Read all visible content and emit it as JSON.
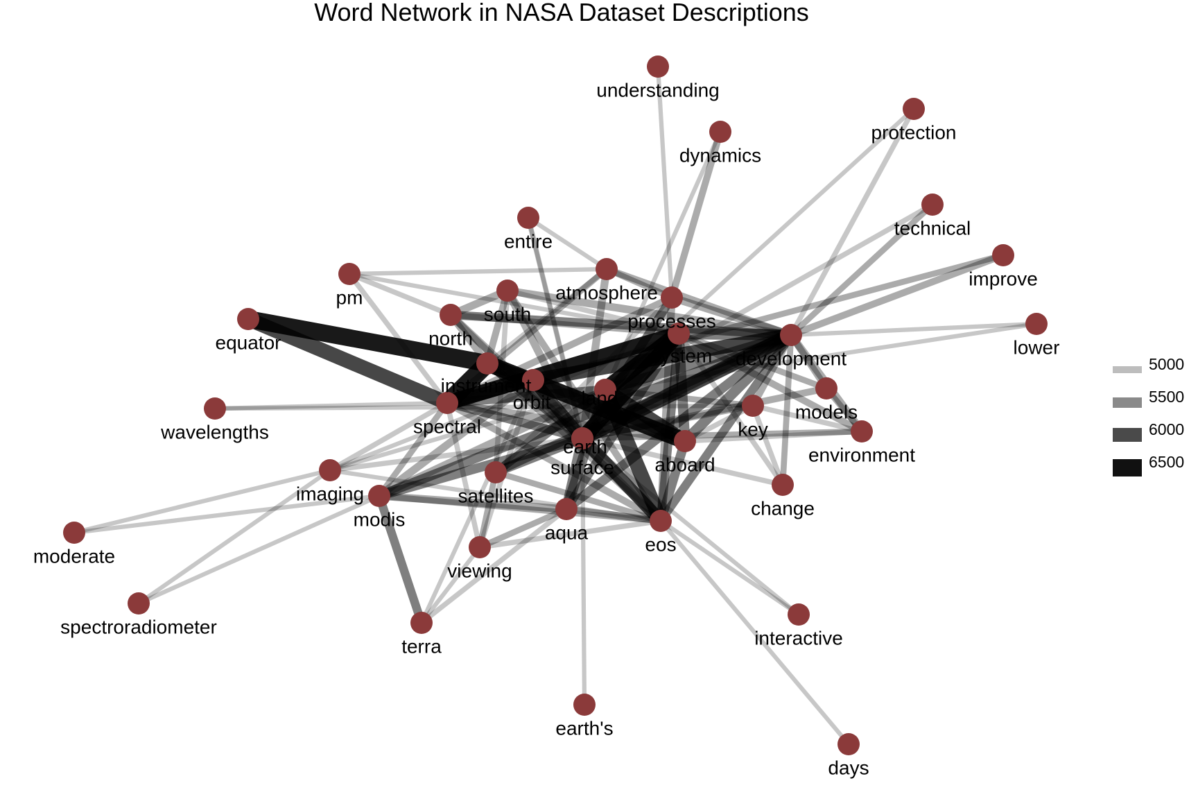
{
  "title": "Word Network in NASA Dataset Descriptions",
  "colors": {
    "node": "#8B3A3A",
    "edge": "#000000",
    "background": "#ffffff"
  },
  "legend": {
    "items": [
      {
        "label": "5000",
        "color": "#bdbdbd"
      },
      {
        "label": "5500",
        "color": "#8a8a8a"
      },
      {
        "label": "6000",
        "color": "#4a4a4a"
      },
      {
        "label": "6500",
        "color": "#111111"
      }
    ]
  },
  "network": {
    "nodes": [
      {
        "id": "understanding",
        "label": "understanding"
      },
      {
        "id": "dynamics",
        "label": "dynamics"
      },
      {
        "id": "protection",
        "label": "protection"
      },
      {
        "id": "technical",
        "label": "technical"
      },
      {
        "id": "entire",
        "label": "entire"
      },
      {
        "id": "improve",
        "label": "improve"
      },
      {
        "id": "atmosphere",
        "label": "atmosphere"
      },
      {
        "id": "pm",
        "label": "pm"
      },
      {
        "id": "south",
        "label": "south"
      },
      {
        "id": "processes",
        "label": "processes"
      },
      {
        "id": "lower",
        "label": "lower"
      },
      {
        "id": "north",
        "label": "north"
      },
      {
        "id": "equator",
        "label": "equator"
      },
      {
        "id": "system",
        "label": "system"
      },
      {
        "id": "development",
        "label": "development"
      },
      {
        "id": "instrument",
        "label": "instrument"
      },
      {
        "id": "orbit",
        "label": "orbit"
      },
      {
        "id": "land",
        "label": "land"
      },
      {
        "id": "models",
        "label": "models"
      },
      {
        "id": "key",
        "label": "key"
      },
      {
        "id": "spectral",
        "label": "spectral"
      },
      {
        "id": "wavelengths",
        "label": "wavelengths"
      },
      {
        "id": "environment",
        "label": "environment"
      },
      {
        "id": "earth",
        "label": "earth"
      },
      {
        "id": "aboard",
        "label": "aboard"
      },
      {
        "id": "surface",
        "label": "surface"
      },
      {
        "id": "imaging",
        "label": "imaging"
      },
      {
        "id": "satellites",
        "label": "satellites"
      },
      {
        "id": "change",
        "label": "change"
      },
      {
        "id": "modis",
        "label": "modis"
      },
      {
        "id": "aqua",
        "label": "aqua"
      },
      {
        "id": "eos",
        "label": "eos"
      },
      {
        "id": "moderate",
        "label": "moderate"
      },
      {
        "id": "viewing",
        "label": "viewing"
      },
      {
        "id": "spectroradiometer",
        "label": "spectroradiometer"
      },
      {
        "id": "terra",
        "label": "terra"
      },
      {
        "id": "interactive",
        "label": "interactive"
      },
      {
        "id": "earths",
        "label": "earth's"
      },
      {
        "id": "days",
        "label": "days"
      }
    ],
    "edges": [
      {
        "from": "equator",
        "to": "instrument",
        "n": 6600
      },
      {
        "from": "equator",
        "to": "spectral",
        "n": 6300
      },
      {
        "from": "instrument",
        "to": "spectral",
        "n": 6700
      },
      {
        "from": "instrument",
        "to": "aboard",
        "n": 6500
      },
      {
        "from": "spectral",
        "to": "system",
        "n": 6400
      },
      {
        "from": "land",
        "to": "system",
        "n": 6500
      },
      {
        "from": "earth",
        "to": "system",
        "n": 6400
      },
      {
        "from": "earth",
        "to": "development",
        "n": 6300
      },
      {
        "from": "orbit",
        "to": "development",
        "n": 6200
      },
      {
        "from": "land",
        "to": "eos",
        "n": 6300
      },
      {
        "from": "land",
        "to": "aboard",
        "n": 6200
      },
      {
        "from": "earth",
        "to": "eos",
        "n": 6100
      },
      {
        "from": "orbit",
        "to": "earth",
        "n": 6000
      },
      {
        "from": "orbit",
        "to": "spectral",
        "n": 6000
      },
      {
        "from": "instrument",
        "to": "orbit",
        "n": 6000
      },
      {
        "from": "system",
        "to": "development",
        "n": 5900
      },
      {
        "from": "system",
        "to": "aboard",
        "n": 5800
      },
      {
        "from": "system",
        "to": "eos",
        "n": 5600
      },
      {
        "from": "development",
        "to": "aboard",
        "n": 5800
      },
      {
        "from": "development",
        "to": "eos",
        "n": 5600
      },
      {
        "from": "development",
        "to": "environment",
        "n": 5500
      },
      {
        "from": "development",
        "to": "models",
        "n": 5400
      },
      {
        "from": "development",
        "to": "key",
        "n": 5400
      },
      {
        "from": "development",
        "to": "improve",
        "n": 5400
      },
      {
        "from": "development",
        "to": "technical",
        "n": 5300
      },
      {
        "from": "development",
        "to": "lower",
        "n": 5100
      },
      {
        "from": "development",
        "to": "protection",
        "n": 5200
      },
      {
        "from": "development",
        "to": "processes",
        "n": 5500
      },
      {
        "from": "development",
        "to": "atmosphere",
        "n": 5400
      },
      {
        "from": "development",
        "to": "south",
        "n": 5500
      },
      {
        "from": "development",
        "to": "north",
        "n": 5600
      },
      {
        "from": "development",
        "to": "surface",
        "n": 5700
      },
      {
        "from": "development",
        "to": "satellites",
        "n": 5600
      },
      {
        "from": "development",
        "to": "modis",
        "n": 5700
      },
      {
        "from": "development",
        "to": "aqua",
        "n": 5700
      },
      {
        "from": "development",
        "to": "change",
        "n": 5300
      },
      {
        "from": "models",
        "to": "environment",
        "n": 5300
      },
      {
        "from": "models",
        "to": "earth",
        "n": 5400
      },
      {
        "from": "key",
        "to": "environment",
        "n": 5200
      },
      {
        "from": "key",
        "to": "earth",
        "n": 5300
      },
      {
        "from": "key",
        "to": "change",
        "n": 5200
      },
      {
        "from": "environment",
        "to": "earth",
        "n": 5300
      },
      {
        "from": "environment",
        "to": "system",
        "n": 5400
      },
      {
        "from": "environment",
        "to": "aboard",
        "n": 5200
      },
      {
        "from": "understanding",
        "to": "processes",
        "n": 5100
      },
      {
        "from": "dynamics",
        "to": "processes",
        "n": 5400
      },
      {
        "from": "dynamics",
        "to": "land",
        "n": 5100
      },
      {
        "from": "protection",
        "to": "land",
        "n": 5100
      },
      {
        "from": "technical",
        "to": "land",
        "n": 5200
      },
      {
        "from": "improve",
        "to": "spectral",
        "n": 5300
      },
      {
        "from": "lower",
        "to": "land",
        "n": 5100
      },
      {
        "from": "entire",
        "to": "atmosphere",
        "n": 5100
      },
      {
        "from": "entire",
        "to": "surface",
        "n": 5200
      },
      {
        "from": "atmosphere",
        "to": "processes",
        "n": 5300
      },
      {
        "from": "atmosphere",
        "to": "earth",
        "n": 5500
      },
      {
        "from": "atmosphere",
        "to": "instrument",
        "n": 5200
      },
      {
        "from": "atmosphere",
        "to": "spectral",
        "n": 5300
      },
      {
        "from": "pm",
        "to": "north",
        "n": 5200
      },
      {
        "from": "pm",
        "to": "atmosphere",
        "n": 5100
      },
      {
        "from": "pm",
        "to": "system",
        "n": 5100
      },
      {
        "from": "pm",
        "to": "spectral",
        "n": 5200
      },
      {
        "from": "south",
        "to": "north",
        "n": 5500
      },
      {
        "from": "south",
        "to": "instrument",
        "n": 5400
      },
      {
        "from": "south",
        "to": "earth",
        "n": 5500
      },
      {
        "from": "south",
        "to": "eos",
        "n": 5400
      },
      {
        "from": "south",
        "to": "satellites",
        "n": 5200
      },
      {
        "from": "north",
        "to": "instrument",
        "n": 5400
      },
      {
        "from": "north",
        "to": "earth",
        "n": 5500
      },
      {
        "from": "north",
        "to": "eos",
        "n": 5400
      },
      {
        "from": "north",
        "to": "system",
        "n": 5300
      },
      {
        "from": "processes",
        "to": "earth",
        "n": 5600
      },
      {
        "from": "processes",
        "to": "spectral",
        "n": 5400
      },
      {
        "from": "processes",
        "to": "eos",
        "n": 5500
      },
      {
        "from": "wavelengths",
        "to": "spectral",
        "n": 5100
      },
      {
        "from": "wavelengths",
        "to": "key",
        "n": 5100
      },
      {
        "from": "imaging",
        "to": "spectral",
        "n": 5200
      },
      {
        "from": "imaging",
        "to": "earth",
        "n": 5200
      },
      {
        "from": "imaging",
        "to": "system",
        "n": 5100
      },
      {
        "from": "imaging",
        "to": "land",
        "n": 5100
      },
      {
        "from": "imaging",
        "to": "eos",
        "n": 5100
      },
      {
        "from": "moderate",
        "to": "imaging",
        "n": 5100
      },
      {
        "from": "moderate",
        "to": "modis",
        "n": 5100
      },
      {
        "from": "spectroradiometer",
        "to": "imaging",
        "n": 5100
      },
      {
        "from": "spectroradiometer",
        "to": "modis",
        "n": 5100
      },
      {
        "from": "modis",
        "to": "spectral",
        "n": 5300
      },
      {
        "from": "modis",
        "to": "earth",
        "n": 5700
      },
      {
        "from": "modis",
        "to": "orbit",
        "n": 5500
      },
      {
        "from": "modis",
        "to": "land",
        "n": 5500
      },
      {
        "from": "modis",
        "to": "aqua",
        "n": 5500
      },
      {
        "from": "modis",
        "to": "terra",
        "n": 5600
      },
      {
        "from": "modis",
        "to": "eos",
        "n": 5300
      },
      {
        "from": "satellites",
        "to": "earth",
        "n": 5700
      },
      {
        "from": "satellites",
        "to": "system",
        "n": 5600
      },
      {
        "from": "satellites",
        "to": "eos",
        "n": 5300
      },
      {
        "from": "satellites",
        "to": "viewing",
        "n": 5300
      },
      {
        "from": "aqua",
        "to": "earth",
        "n": 5800
      },
      {
        "from": "aqua",
        "to": "eos",
        "n": 5400
      },
      {
        "from": "aqua",
        "to": "land",
        "n": 5800
      },
      {
        "from": "aqua",
        "to": "system",
        "n": 5600
      },
      {
        "from": "aqua",
        "to": "viewing",
        "n": 5300
      },
      {
        "from": "aqua",
        "to": "terra",
        "n": 5200
      },
      {
        "from": "eos",
        "to": "aboard",
        "n": 5700
      },
      {
        "from": "eos",
        "to": "viewing",
        "n": 5200
      },
      {
        "from": "eos",
        "to": "interactive",
        "n": 5100
      },
      {
        "from": "eos",
        "to": "days",
        "n": 5100
      },
      {
        "from": "eos",
        "to": "spectral",
        "n": 5400
      },
      {
        "from": "viewing",
        "to": "spectral",
        "n": 5200
      },
      {
        "from": "viewing",
        "to": "orbit",
        "n": 5200
      },
      {
        "from": "viewing",
        "to": "terra",
        "n": 5100
      },
      {
        "from": "terra",
        "to": "orbit",
        "n": 5100
      },
      {
        "from": "earths",
        "to": "earth",
        "n": 5100
      },
      {
        "from": "interactive",
        "to": "earth",
        "n": 5100
      },
      {
        "from": "change",
        "to": "earth",
        "n": 5200
      },
      {
        "from": "change",
        "to": "system",
        "n": 5200
      },
      {
        "from": "surface",
        "to": "system",
        "n": 5500
      },
      {
        "from": "surface",
        "to": "spectral",
        "n": 5600
      },
      {
        "from": "surface",
        "to": "orbit",
        "n": 5500
      },
      {
        "from": "aboard",
        "to": "orbit",
        "n": 5600
      },
      {
        "from": "aboard",
        "to": "spectral",
        "n": 5500
      },
      {
        "from": "key",
        "to": "aboard",
        "n": 5200
      },
      {
        "from": "key",
        "to": "land",
        "n": 5300
      },
      {
        "from": "models",
        "to": "system",
        "n": 5300
      },
      {
        "from": "entire",
        "to": "earth",
        "n": 5100
      },
      {
        "from": "south",
        "to": "system",
        "n": 5200
      },
      {
        "from": "processes",
        "to": "satellites",
        "n": 5200
      },
      {
        "from": "instrument",
        "to": "eos",
        "n": 5400
      },
      {
        "from": "instrument",
        "to": "earth",
        "n": 5600
      },
      {
        "from": "land",
        "to": "spectral",
        "n": 5700
      },
      {
        "from": "land",
        "to": "development",
        "n": 5800
      }
    ]
  }
}
